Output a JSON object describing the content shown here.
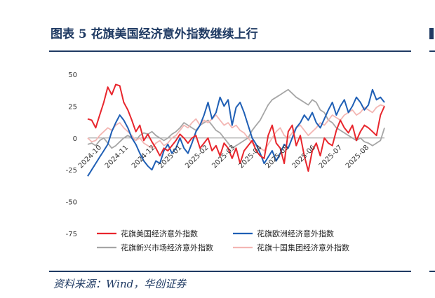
{
  "figure": {
    "title": "图表 5   花旗美国经济意外指数继续上行",
    "source": "资料来源：Wind，华创证券"
  },
  "chart_data": {
    "type": "line",
    "title": "",
    "xlabel": "",
    "ylabel": "",
    "ylim": [
      -75,
      50
    ],
    "yticks": [
      50,
      25,
      0,
      -25,
      -50,
      -75
    ],
    "x_tick_labels": [
      "2024-10",
      "2024-11",
      "2024-12",
      "2025-01",
      "2025-02",
      "2025-03",
      "2025-04",
      "2025-05",
      "2025-06",
      "2025-07",
      "2025-08"
    ],
    "x_month_index": [
      0,
      1,
      2,
      3,
      4,
      5,
      6,
      7,
      8,
      9,
      10
    ],
    "legend_position": "bottom",
    "grid": false,
    "series": [
      {
        "name": "花旗美国经济意外指数",
        "color": "#e8262d",
        "x": [
          0,
          0.15,
          0.3,
          0.45,
          0.6,
          0.75,
          0.9,
          1.05,
          1.2,
          1.35,
          1.5,
          1.65,
          1.8,
          1.95,
          2.1,
          2.25,
          2.4,
          2.55,
          2.7,
          2.85,
          3.0,
          3.15,
          3.3,
          3.45,
          3.6,
          3.75,
          3.9,
          4.05,
          4.2,
          4.35,
          4.5,
          4.65,
          4.8,
          4.95,
          5.1,
          5.25,
          5.4,
          5.55,
          5.7,
          5.85,
          6.0,
          6.15,
          6.3,
          6.45,
          6.6,
          6.75,
          6.9,
          7.05,
          7.2,
          7.35,
          7.5,
          7.65,
          7.8,
          7.95,
          8.1,
          8.25,
          8.4,
          8.55,
          8.7,
          8.85,
          9.0,
          9.15,
          9.3,
          9.45,
          9.6,
          9.75,
          9.9,
          10.05,
          10.2,
          10.35,
          10.5,
          10.65,
          10.8,
          10.95,
          11.1
        ],
        "values": [
          15,
          14,
          8,
          18,
          28,
          40,
          34,
          42,
          41,
          28,
          22,
          14,
          5,
          10,
          -2,
          3,
          -3,
          -8,
          -14,
          -8,
          -10,
          -6,
          -2,
          3,
          0,
          -4,
          0,
          2,
          -8,
          -4,
          0,
          -10,
          -6,
          -14,
          -4,
          -8,
          -16,
          -8,
          -20,
          -10,
          -6,
          -2,
          -10,
          -14,
          -16,
          2,
          10,
          -4,
          -8,
          -20,
          5,
          10,
          -6,
          2,
          -14,
          -26,
          -10,
          -4,
          -14,
          0,
          -4,
          -6,
          6,
          14,
          8,
          4,
          10,
          -2,
          5,
          10,
          8,
          5,
          2,
          18,
          25
        ]
      },
      {
        "name": "花旗欧洲经济意外指数",
        "color": "#1f5fb5",
        "x": [
          0,
          0.15,
          0.3,
          0.45,
          0.6,
          0.75,
          0.9,
          1.05,
          1.2,
          1.35,
          1.5,
          1.65,
          1.8,
          1.95,
          2.1,
          2.25,
          2.4,
          2.55,
          2.7,
          2.85,
          3.0,
          3.15,
          3.3,
          3.45,
          3.6,
          3.75,
          3.9,
          4.05,
          4.2,
          4.35,
          4.5,
          4.65,
          4.8,
          4.95,
          5.1,
          5.25,
          5.4,
          5.55,
          5.7,
          5.85,
          6.0,
          6.15,
          6.3,
          6.45,
          6.6,
          6.75,
          6.9,
          7.05,
          7.2,
          7.35,
          7.5,
          7.65,
          7.8,
          7.95,
          8.1,
          8.25,
          8.4,
          8.55,
          8.7,
          8.85,
          9.0,
          9.15,
          9.3,
          9.45,
          9.6,
          9.75,
          9.9,
          10.05,
          10.2,
          10.35,
          10.5,
          10.65,
          10.8,
          10.95,
          11.1
        ],
        "values": [
          -30,
          -25,
          -20,
          -15,
          -10,
          -5,
          5,
          12,
          18,
          14,
          8,
          0,
          -5,
          -12,
          -18,
          -22,
          -25,
          -18,
          -20,
          -10,
          -5,
          -12,
          -8,
          0,
          -8,
          -12,
          -4,
          5,
          10,
          18,
          28,
          15,
          20,
          32,
          25,
          30,
          10,
          24,
          28,
          20,
          10,
          0,
          -5,
          -12,
          -20,
          -15,
          -10,
          -18,
          -12,
          -5,
          -8,
          0,
          8,
          12,
          18,
          14,
          20,
          12,
          8,
          15,
          22,
          28,
          18,
          25,
          30,
          20,
          25,
          32,
          28,
          22,
          26,
          38,
          30,
          32,
          28
        ]
      },
      {
        "name": "花旗新兴市场经济意外指数",
        "color": "#a6a6a6",
        "x": [
          0,
          0.15,
          0.3,
          0.45,
          0.6,
          0.75,
          0.9,
          1.05,
          1.2,
          1.35,
          1.5,
          1.65,
          1.8,
          1.95,
          2.1,
          2.25,
          2.4,
          2.55,
          2.7,
          2.85,
          3.0,
          3.15,
          3.3,
          3.45,
          3.6,
          3.75,
          3.9,
          4.05,
          4.2,
          4.35,
          4.5,
          4.65,
          4.8,
          4.95,
          5.1,
          5.25,
          5.4,
          5.55,
          5.7,
          5.85,
          6.0,
          6.15,
          6.3,
          6.45,
          6.6,
          6.75,
          6.9,
          7.05,
          7.2,
          7.35,
          7.5,
          7.65,
          7.8,
          7.95,
          8.1,
          8.25,
          8.4,
          8.55,
          8.7,
          8.85,
          9.0,
          9.15,
          9.3,
          9.45,
          9.6,
          9.75,
          9.9,
          10.05,
          10.2,
          10.35,
          10.5,
          10.65,
          10.8,
          10.95,
          11.1
        ],
        "values": [
          -5,
          -4,
          -6,
          -2,
          0,
          -4,
          -8,
          -6,
          -3,
          0,
          2,
          0,
          -2,
          2,
          4,
          3,
          5,
          2,
          0,
          -2,
          0,
          3,
          5,
          8,
          12,
          10,
          8,
          6,
          10,
          12,
          14,
          10,
          6,
          4,
          0,
          -4,
          -8,
          -6,
          -4,
          -2,
          0,
          6,
          10,
          14,
          20,
          26,
          30,
          32,
          34,
          36,
          38,
          35,
          32,
          30,
          28,
          26,
          30,
          28,
          22,
          20,
          14,
          12,
          8,
          6,
          4,
          2,
          0,
          -2,
          0,
          -3,
          -4,
          -6,
          -4,
          -2,
          8
        ]
      },
      {
        "name": "花旗十国集团经济意外指数",
        "color": "#f3b6b3",
        "x": [
          0,
          0.15,
          0.3,
          0.45,
          0.6,
          0.75,
          0.9,
          1.05,
          1.2,
          1.35,
          1.5,
          1.65,
          1.8,
          1.95,
          2.1,
          2.25,
          2.4,
          2.55,
          2.7,
          2.85,
          3.0,
          3.15,
          3.3,
          3.45,
          3.6,
          3.75,
          3.9,
          4.05,
          4.2,
          4.35,
          4.5,
          4.65,
          4.8,
          4.95,
          5.1,
          5.25,
          5.4,
          5.55,
          5.7,
          5.85,
          6.0,
          6.15,
          6.3,
          6.45,
          6.6,
          6.75,
          6.9,
          7.05,
          7.2,
          7.35,
          7.5,
          7.65,
          7.8,
          7.95,
          8.1,
          8.25,
          8.4,
          8.55,
          8.7,
          8.85,
          9.0,
          9.15,
          9.3,
          9.45,
          9.6,
          9.75,
          9.9,
          10.05,
          10.2,
          10.35,
          10.5,
          10.65,
          10.8,
          10.95,
          11.1
        ],
        "values": [
          0,
          -3,
          -2,
          2,
          5,
          8,
          6,
          10,
          12,
          8,
          5,
          2,
          -2,
          0,
          -4,
          -6,
          -8,
          -4,
          -2,
          -6,
          -4,
          0,
          2,
          6,
          10,
          8,
          12,
          15,
          10,
          14,
          12,
          15,
          18,
          14,
          10,
          12,
          8,
          10,
          6,
          4,
          0,
          -4,
          -6,
          -8,
          -10,
          -5,
          0,
          5,
          8,
          2,
          0,
          4,
          8,
          10,
          6,
          2,
          5,
          8,
          12,
          10,
          14,
          18,
          16,
          14,
          18,
          20,
          22,
          18,
          20,
          24,
          22,
          20,
          24,
          26,
          25
        ]
      }
    ]
  }
}
